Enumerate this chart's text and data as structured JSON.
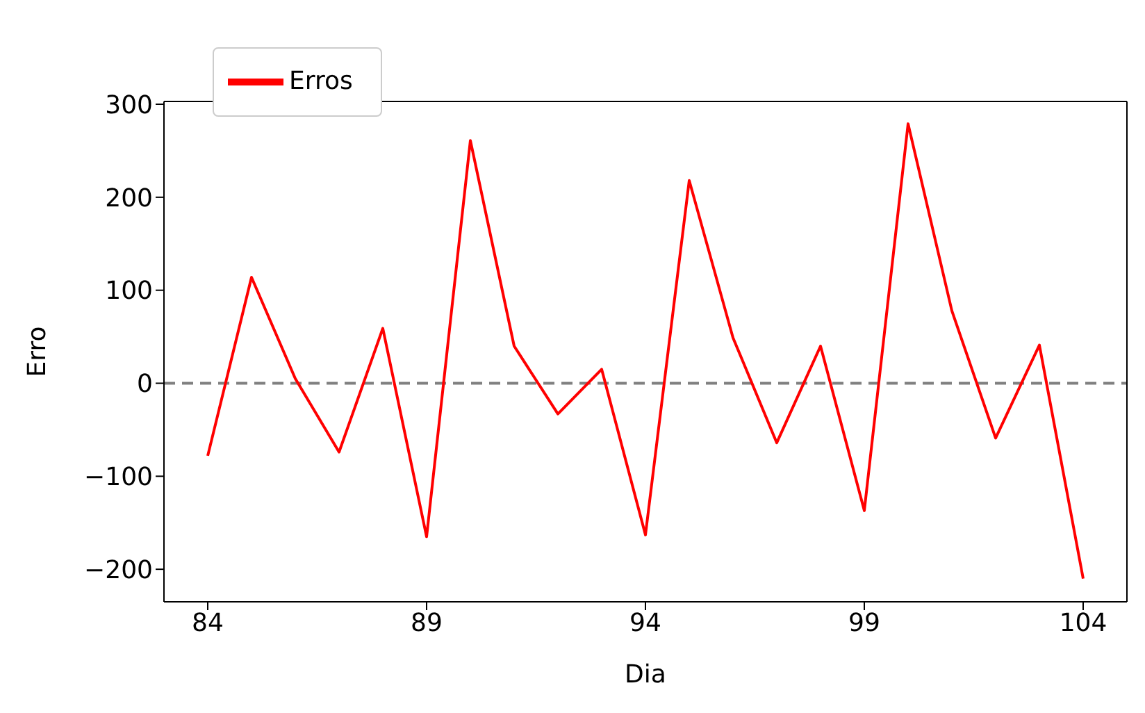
{
  "chart_data": {
    "type": "line",
    "xlabel": "Dia",
    "ylabel": "Erro",
    "x": [
      84,
      85,
      86,
      87,
      88,
      89,
      90,
      91,
      92,
      93,
      94,
      95,
      96,
      97,
      98,
      99,
      100,
      101,
      102,
      103,
      104
    ],
    "series": [
      {
        "name": "Erros",
        "color": "#ff0000",
        "values": [
          -78,
          114,
          5,
          -74,
          59,
          -165,
          261,
          40,
          -33,
          15,
          -163,
          218,
          49,
          -64,
          40,
          -137,
          279,
          78,
          -59,
          41,
          -210
        ]
      }
    ],
    "xlim": [
      83,
      105
    ],
    "xticks": [
      84,
      89,
      94,
      99,
      104
    ],
    "ylim": [
      -235,
      303
    ],
    "yticks": [
      {
        "value": -200,
        "label": "−200"
      },
      {
        "value": -100,
        "label": "−100"
      },
      0,
      100,
      200,
      300
    ],
    "ref_lines": [
      {
        "axis": "y",
        "value": 0,
        "color": "#808080",
        "line_style": "dashed"
      }
    ],
    "grid": false,
    "legend": "top left",
    "marker": "none",
    "line_style": "solid"
  }
}
